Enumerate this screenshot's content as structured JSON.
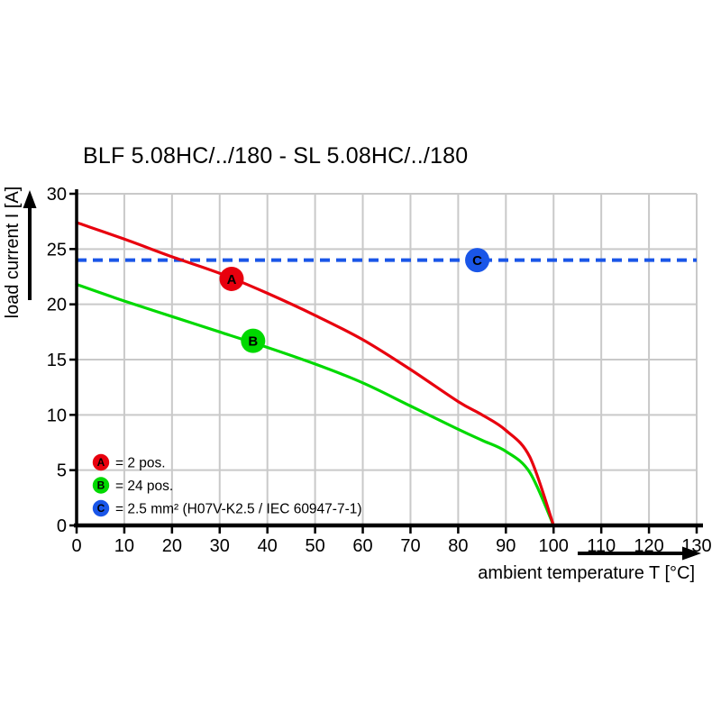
{
  "chart_data": {
    "type": "line",
    "title": "BLF 5.08HC/../180 - SL 5.08HC/../180",
    "xlabel": "ambient temperature T [°C]",
    "ylabel": "load current I [A]",
    "xlim": [
      0,
      130
    ],
    "ylim": [
      0,
      30
    ],
    "x_ticks": [
      0,
      10,
      20,
      30,
      40,
      50,
      60,
      70,
      80,
      90,
      100,
      110,
      120,
      130
    ],
    "y_ticks": [
      0,
      5,
      10,
      15,
      20,
      25,
      30
    ],
    "grid": true,
    "grid_color": "#c9c9c9",
    "colors": {
      "red": "#e8000e",
      "green": "#00d900",
      "blue": "#1a56e8"
    },
    "series": [
      {
        "id": "A",
        "name": "2 pos.",
        "color": "#e8000e",
        "style": "solid",
        "x": [
          0,
          10,
          20,
          30,
          40,
          50,
          60,
          70,
          80,
          85,
          90,
          95,
          100
        ],
        "y": [
          27.4,
          25.9,
          24.3,
          22.8,
          21.0,
          19.0,
          16.8,
          14.1,
          11.2,
          10.0,
          8.6,
          6.2,
          0
        ]
      },
      {
        "id": "B",
        "name": "24 pos.",
        "color": "#00d900",
        "style": "solid",
        "x": [
          0,
          10,
          20,
          30,
          40,
          50,
          60,
          70,
          80,
          85,
          90,
          95,
          100
        ],
        "y": [
          21.8,
          20.3,
          18.9,
          17.5,
          16.1,
          14.6,
          12.9,
          10.8,
          8.7,
          7.7,
          6.7,
          4.8,
          0
        ]
      },
      {
        "id": "C",
        "name": "2.5 mm² (H07V-K2.5 / IEC 60947-7-1)",
        "color": "#1a56e8",
        "style": "dashed",
        "const_y": 24,
        "x": [
          0,
          130
        ],
        "y": [
          24,
          24
        ]
      }
    ],
    "markers": [
      {
        "label": "A",
        "x": 32.5,
        "y": 22.3,
        "color": "#e8000e"
      },
      {
        "label": "B",
        "x": 37,
        "y": 16.7,
        "color": "#00d900"
      },
      {
        "label": "C",
        "x": 84,
        "y": 24,
        "color": "#1a56e8"
      }
    ],
    "legend": {
      "position": "bottom-left",
      "items": [
        {
          "label": "A",
          "text": "= 2 pos.",
          "color": "#e8000e"
        },
        {
          "label": "B",
          "text": "= 24 pos.",
          "color": "#00d900"
        },
        {
          "label": "C",
          "text": "= 2.5 mm² (H07V-K2.5 / IEC 60947-7-1)",
          "color": "#1a56e8"
        }
      ]
    }
  }
}
